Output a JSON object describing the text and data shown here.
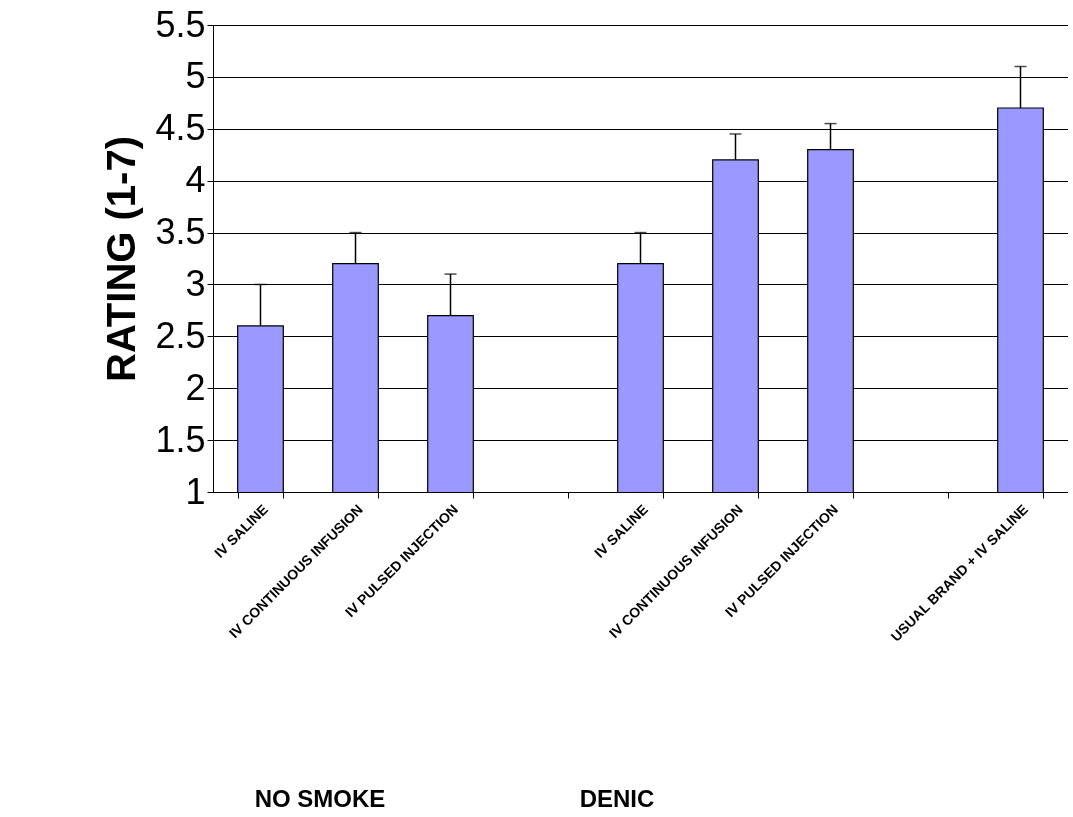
{
  "chart_data": {
    "type": "bar",
    "ylabel": "RATING (1-7)",
    "categories": [
      "IV SALINE",
      "IV CONTINUOUS INFUSION",
      "IV PULSED INJECTION",
      null,
      "IV SALINE",
      "IV CONTINUOUS INFUSION",
      "IV PULSED INJECTION",
      null,
      "USUAL BRAND + IV SALINE"
    ],
    "values": [
      2.6,
      3.2,
      2.7,
      null,
      3.2,
      4.2,
      4.3,
      null,
      4.7
    ],
    "errors": [
      0.4,
      0.3,
      0.4,
      null,
      0.3,
      0.25,
      0.25,
      null,
      0.4
    ],
    "color": "#9999ff",
    "ylim": [
      1,
      5.5
    ],
    "yticks": [
      1,
      1.5,
      2,
      2.5,
      3,
      3.5,
      4,
      4.5,
      5,
      5.5
    ],
    "grid": "y",
    "annotations": [
      "NO SMOKE",
      "DENIC"
    ]
  }
}
